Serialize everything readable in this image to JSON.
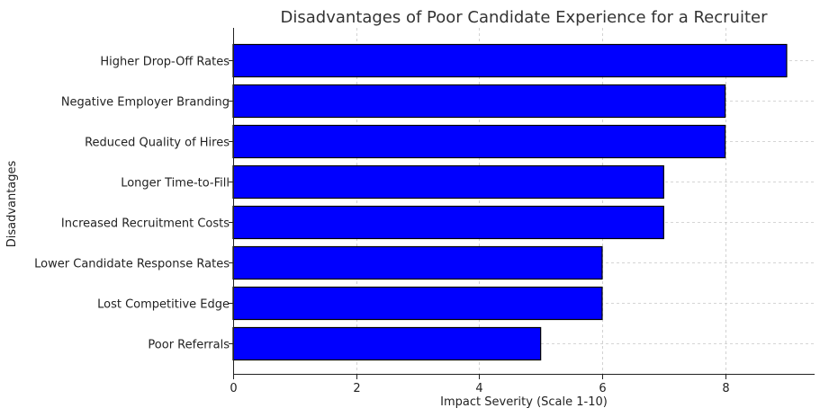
{
  "chart_data": {
    "type": "bar",
    "orientation": "horizontal",
    "title": "Disadvantages of Poor Candidate Experience for a Recruiter",
    "xlabel": "Impact Severity (Scale 1-10)",
    "ylabel": "Disadvantages",
    "categories": [
      "Higher Drop-Off Rates",
      "Negative Employer Branding",
      "Reduced Quality of Hires",
      "Longer Time-to-Fill",
      "Increased Recruitment Costs",
      "Lower Candidate Response Rates",
      "Lost Competitive Edge",
      "Poor Referrals"
    ],
    "values": [
      9,
      8,
      8,
      7,
      7,
      6,
      6,
      5
    ],
    "xlim": [
      0,
      9.45
    ],
    "xticks": [
      0,
      2,
      4,
      6,
      8
    ],
    "grid": true,
    "bar_color": "#0000ff",
    "edge_color": "#000000"
  }
}
